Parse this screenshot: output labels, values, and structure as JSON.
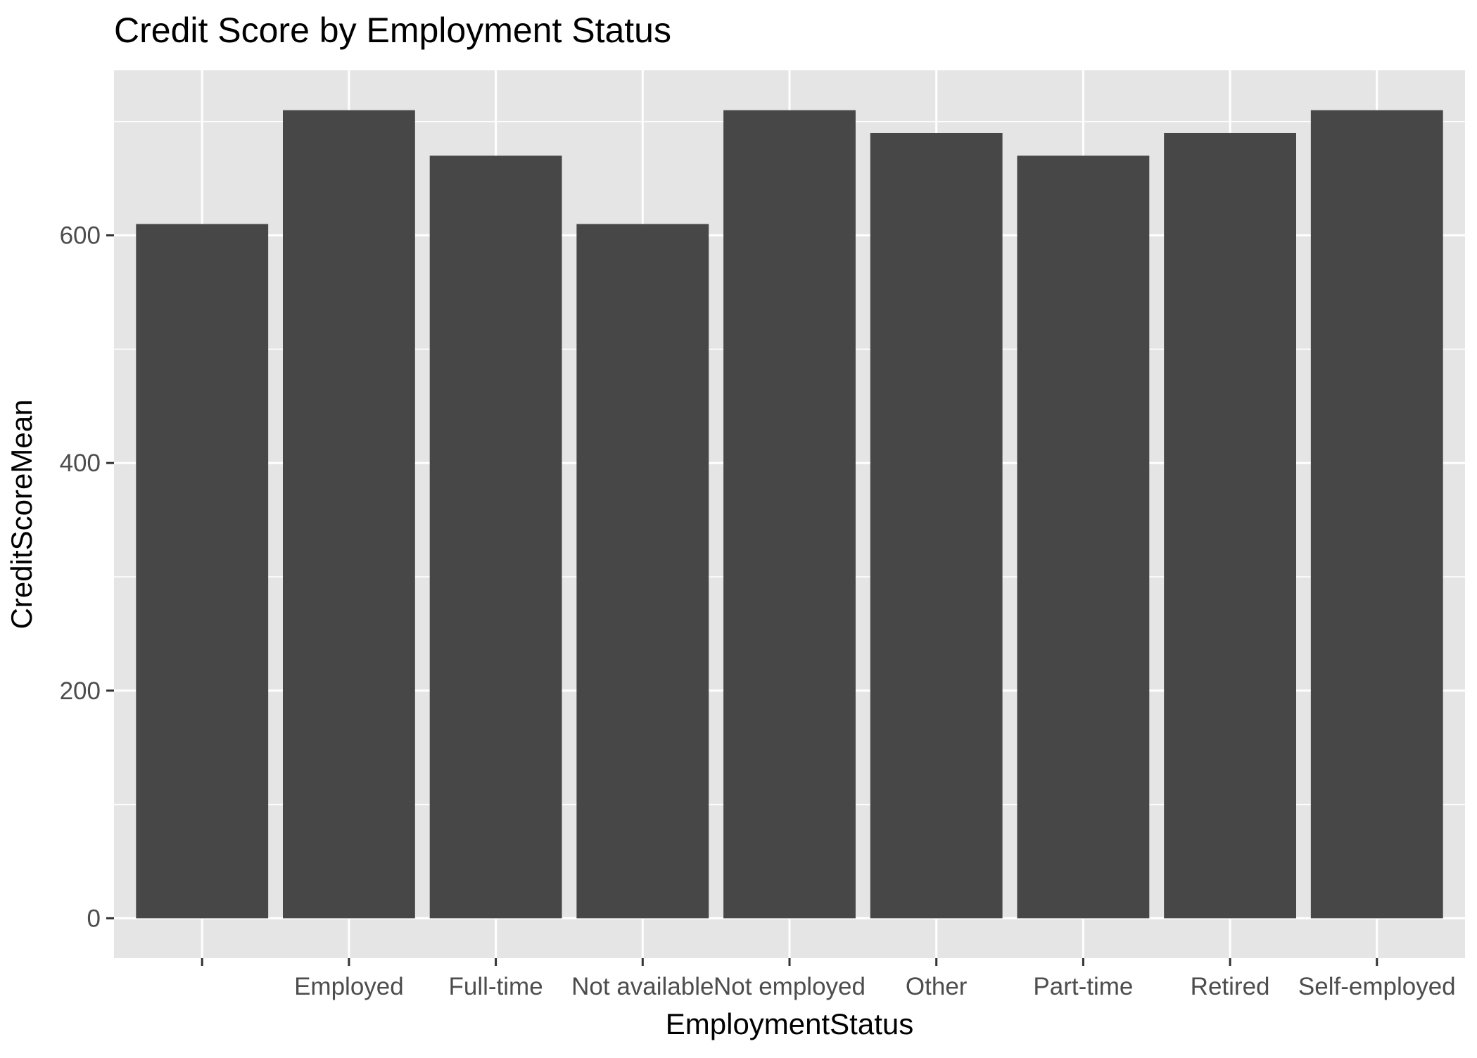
{
  "chart_data": {
    "type": "bar",
    "title": "Credit Score by Employment Status",
    "xlabel": "EmploymentStatus",
    "ylabel": "CreditScoreMean",
    "categories": [
      "",
      "Employed",
      "Full-time",
      "Not available",
      "Not employed",
      "Other",
      "Part-time",
      "Retired",
      "Self-employed"
    ],
    "values": [
      610,
      710,
      670,
      610,
      710,
      690,
      670,
      690,
      710
    ],
    "ylim": [
      -35,
      745
    ],
    "yticks": [
      0,
      200,
      400,
      600
    ],
    "ytick_labels": [
      "0",
      "200",
      "400",
      "600"
    ],
    "grid": true,
    "legend": "none",
    "colors": {
      "bar": "#474747",
      "panel": "#e5e5e5",
      "grid": "#ffffff",
      "tick_text": "#4d4d4d",
      "tick_mark": "#333333"
    }
  }
}
